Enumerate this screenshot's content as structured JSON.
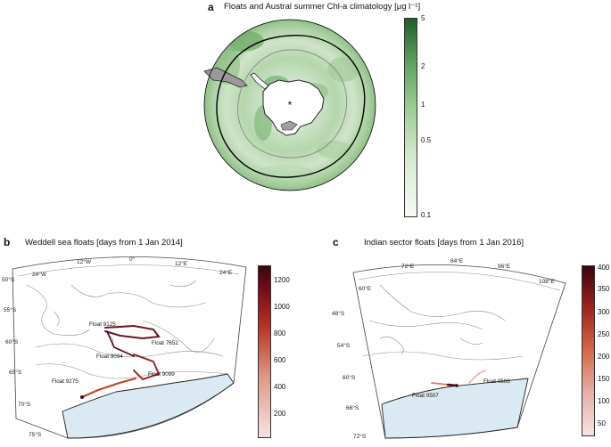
{
  "panel_a": {
    "label": "a",
    "title": "Floats and Austral summer Chl-a climatology [μg l⁻¹]",
    "colorbar_ticks": [
      "5",
      "2",
      "1",
      "0.5",
      "0.1"
    ],
    "colors": {
      "high": "#1d5e2c",
      "low": "#f4f8f2"
    }
  },
  "panel_b": {
    "label": "b",
    "title": "Weddell sea floats [days from 1 Jan 2014]",
    "colorbar_ticks": [
      "1200",
      "1000",
      "800",
      "600",
      "400",
      "200"
    ],
    "lon_labels": [
      "24°W",
      "12°W",
      "0°",
      "12°E",
      "24°E"
    ],
    "lat_labels": [
      "50°S",
      "55°S",
      "60°S",
      "65°S",
      "70°S",
      "75°S"
    ],
    "floats": [
      "Float 9125",
      "Float 7652",
      "Float 9094",
      "Float 9099",
      "Float 9275"
    ],
    "colors": {
      "high": "#3a0410",
      "mid": "#b8321f",
      "low": "#f6e2e4"
    }
  },
  "panel_c": {
    "label": "c",
    "title": "Indian sector floats [days from 1 Jan 2016]",
    "colorbar_ticks": [
      "400",
      "350",
      "300",
      "250",
      "200",
      "150",
      "100",
      "50"
    ],
    "lon_labels": [
      "60°E",
      "72°E",
      "84°E",
      "96°E",
      "108°E"
    ],
    "lat_labels": [
      "48°S",
      "54°S",
      "60°S",
      "66°S",
      "72°S"
    ],
    "floats": [
      "Float 0507",
      "Float 0506"
    ]
  }
}
